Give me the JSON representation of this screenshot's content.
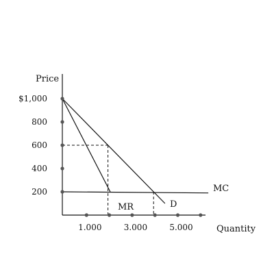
{
  "chart_data": {
    "type": "line",
    "ylabel": "Price",
    "xlabel": "Quantity",
    "ylim": [
      0,
      1000
    ],
    "xlim": [
      0,
      6000
    ],
    "y_ticks": [
      {
        "value": 1000,
        "label": "$1,000"
      },
      {
        "value": 800,
        "label": "800"
      },
      {
        "value": 600,
        "label": "600"
      },
      {
        "value": 400,
        "label": "400"
      },
      {
        "value": 200,
        "label": "200"
      }
    ],
    "x_ticks": [
      {
        "value": 1000,
        "label": "1.000"
      },
      {
        "value": 3000,
        "label": "3.000"
      },
      {
        "value": 5000,
        "label": "5.000"
      }
    ],
    "x_dots": [
      1000,
      2000,
      3000,
      4000,
      5000,
      6000
    ],
    "series": [
      {
        "name": "D",
        "x": [
          0,
          4500
        ],
        "y": [
          1000,
          100
        ]
      },
      {
        "name": "MR",
        "x": [
          0,
          2100
        ],
        "y": [
          1000,
          200
        ]
      },
      {
        "name": "MC",
        "x": [
          0,
          6400
        ],
        "y": [
          200,
          190
        ]
      }
    ],
    "reference_lines": [
      {
        "from": [
          0,
          600
        ],
        "to": [
          2000,
          600
        ]
      },
      {
        "from": [
          2000,
          600
        ],
        "to": [
          2000,
          0
        ]
      },
      {
        "from": [
          4000,
          200
        ],
        "to": [
          4000,
          0
        ]
      }
    ],
    "grid": false,
    "legend": "none",
    "colors": {
      "line": "#111111",
      "dot": "#555555"
    }
  }
}
